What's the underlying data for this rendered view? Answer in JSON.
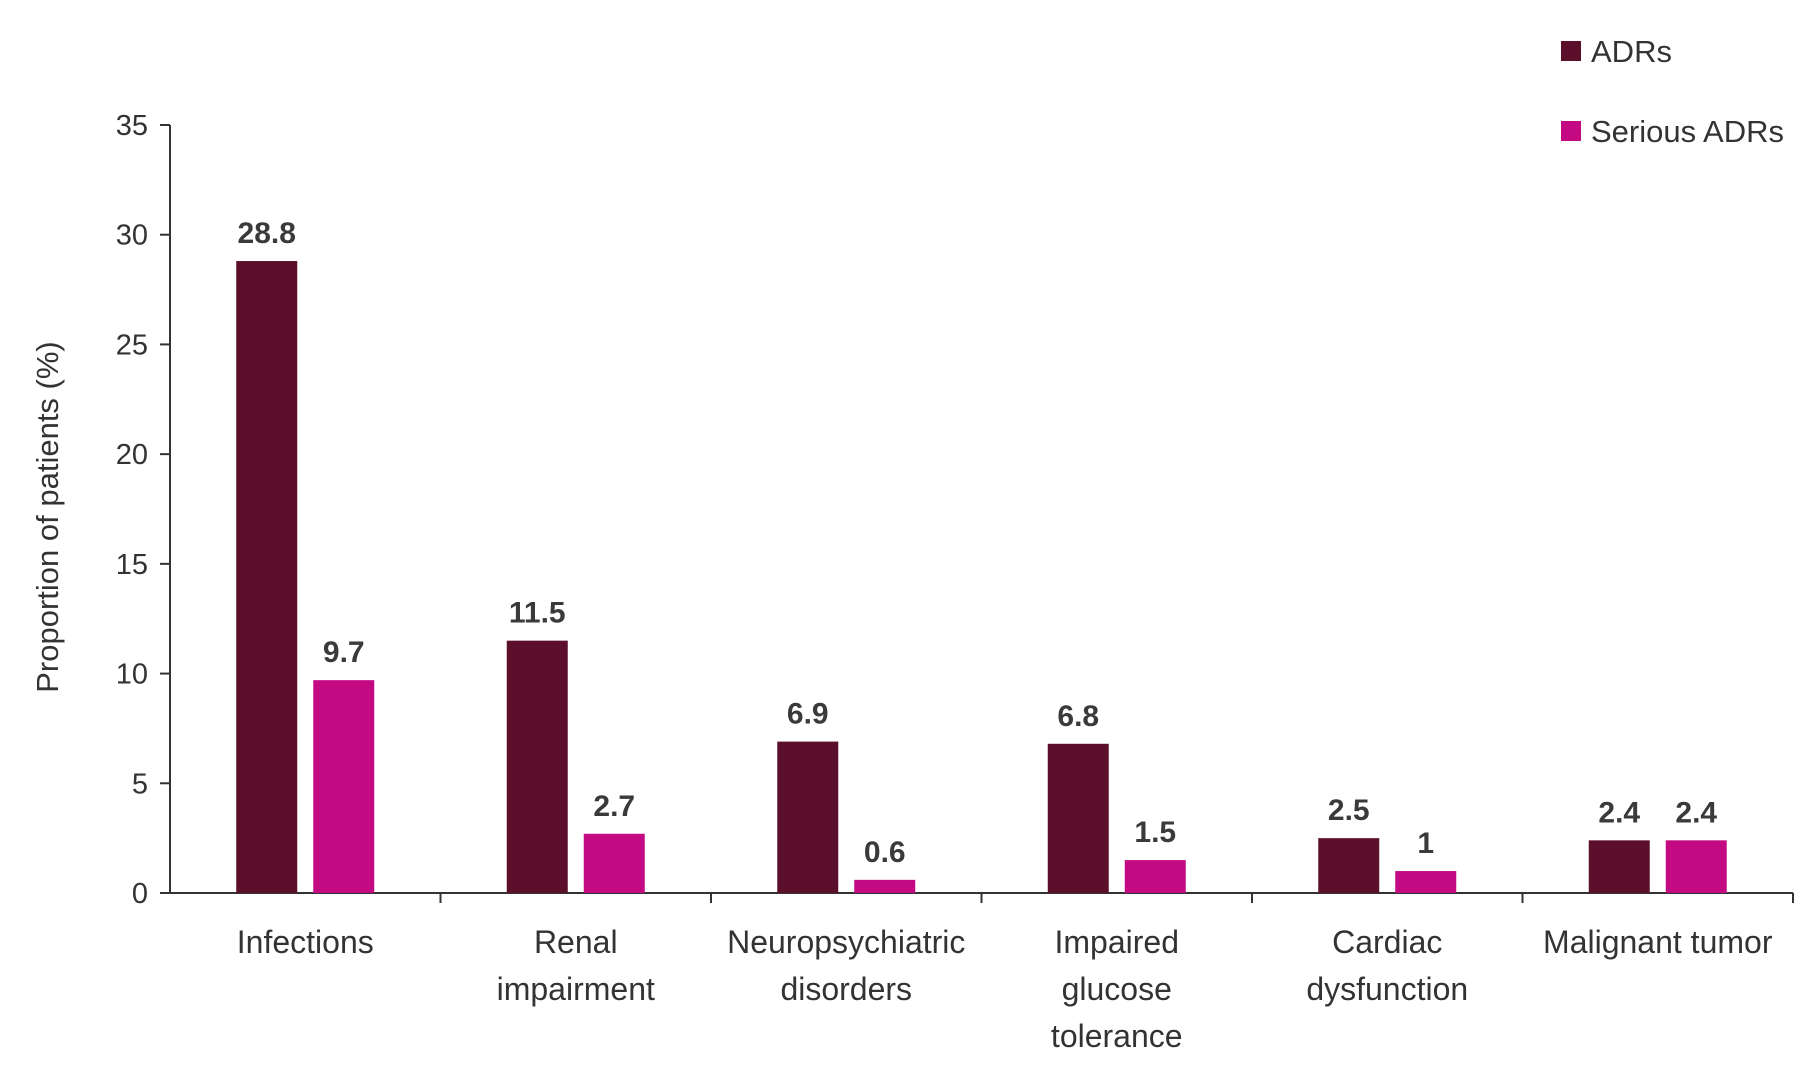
{
  "chart_data": {
    "type": "bar",
    "title": "",
    "xlabel": "",
    "ylabel": "Proportion of patients (%)",
    "ylim": [
      0,
      35
    ],
    "yticks": [
      0,
      5,
      10,
      15,
      20,
      25,
      30,
      35
    ],
    "grid": false,
    "legend_position": "top-right",
    "categories": [
      [
        "Infections"
      ],
      [
        "Renal",
        "impairment"
      ],
      [
        "Neuropsychiatric",
        "disorders"
      ],
      [
        "Impaired",
        "glucose",
        "tolerance"
      ],
      [
        "Cardiac",
        "dysfunction"
      ],
      [
        "Malignant tumor"
      ]
    ],
    "series": [
      {
        "name": "ADRs",
        "color": "#5c0f2b",
        "values": [
          28.8,
          11.5,
          6.9,
          6.8,
          2.5,
          2.4
        ]
      },
      {
        "name": "Serious ADRs",
        "color": "#c40a83",
        "values": [
          9.7,
          2.7,
          0.6,
          1.5,
          1,
          2.4
        ]
      }
    ]
  }
}
